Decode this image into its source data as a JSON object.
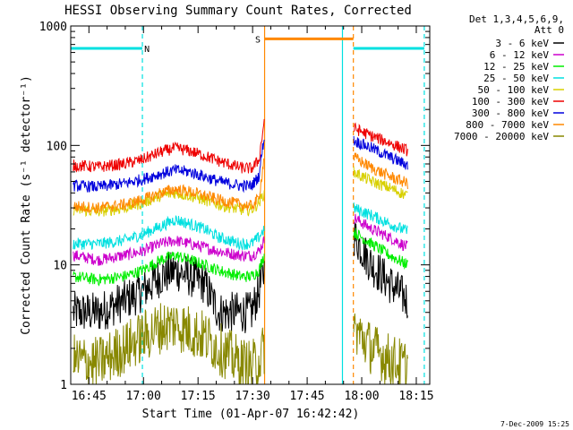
{
  "chart_data": {
    "type": "line",
    "title": "HESSI Observing Summary Count Rates, Corrected",
    "xlabel": "Start Time (01-Apr-07 16:42:42)",
    "ylabel": "Corrected Count Rate (s⁻¹ detector⁻¹)",
    "yscale": "log",
    "xlim_minutes": [
      -2.7,
      96.0
    ],
    "ylim": [
      1,
      1000
    ],
    "x_ticks": [
      {
        "m": 2.3,
        "label": "16:45"
      },
      {
        "m": 17.3,
        "label": "17:00"
      },
      {
        "m": 32.3,
        "label": "17:15"
      },
      {
        "m": 47.3,
        "label": "17:30"
      },
      {
        "m": 62.3,
        "label": "17:45"
      },
      {
        "m": 77.3,
        "label": "18:00"
      },
      {
        "m": 92.3,
        "label": "18:15"
      }
    ],
    "y_ticks": [
      {
        "v": 1,
        "label": "1"
      },
      {
        "v": 10,
        "label": "10"
      },
      {
        "v": 100,
        "label": "100"
      },
      {
        "v": 1000,
        "label": "1000"
      }
    ],
    "legend_header": [
      "Det 1,3,4,5,6,9,",
      "Att 0"
    ],
    "legend_position": "right",
    "data_gaps_minutes": [
      [
        50.6,
        75.0
      ]
    ],
    "series": [
      {
        "name": "3 - 6 keV",
        "color": "#000000",
        "points": [
          [
            -2,
            4
          ],
          [
            5,
            4
          ],
          [
            12,
            5
          ],
          [
            17,
            6
          ],
          [
            22,
            8
          ],
          [
            26,
            9
          ],
          [
            30,
            8
          ],
          [
            34,
            7
          ],
          [
            38,
            4
          ],
          [
            44,
            4
          ],
          [
            47,
            4
          ],
          [
            49,
            6
          ],
          [
            50.5,
            9
          ],
          [
            75,
            18
          ],
          [
            80,
            10
          ],
          [
            85,
            7
          ],
          [
            90,
            5
          ]
        ]
      },
      {
        "name": "6 - 12 keV",
        "color": "#cc00cc",
        "points": [
          [
            -2,
            12
          ],
          [
            5,
            11
          ],
          [
            12,
            12
          ],
          [
            17,
            13
          ],
          [
            22,
            15
          ],
          [
            26,
            16
          ],
          [
            30,
            15
          ],
          [
            34,
            14
          ],
          [
            38,
            13
          ],
          [
            44,
            12
          ],
          [
            47,
            12
          ],
          [
            49,
            13
          ],
          [
            50.5,
            16
          ],
          [
            75,
            25
          ],
          [
            80,
            20
          ],
          [
            85,
            17
          ],
          [
            90,
            14
          ]
        ]
      },
      {
        "name": "12 - 25 keV",
        "color": "#00ee00",
        "points": [
          [
            -2,
            8
          ],
          [
            5,
            7.5
          ],
          [
            12,
            8
          ],
          [
            17,
            9
          ],
          [
            22,
            11
          ],
          [
            26,
            12
          ],
          [
            30,
            11
          ],
          [
            34,
            10
          ],
          [
            38,
            9
          ],
          [
            44,
            8
          ],
          [
            47,
            8
          ],
          [
            49,
            9
          ],
          [
            50.5,
            12
          ],
          [
            75,
            19
          ],
          [
            80,
            15
          ],
          [
            85,
            12
          ],
          [
            90,
            10
          ]
        ]
      },
      {
        "name": "25 - 50 keV",
        "color": "#00e0e0",
        "points": [
          [
            -2,
            15
          ],
          [
            5,
            15
          ],
          [
            12,
            16
          ],
          [
            17,
            18
          ],
          [
            22,
            21
          ],
          [
            26,
            24
          ],
          [
            30,
            22
          ],
          [
            34,
            20
          ],
          [
            38,
            17
          ],
          [
            44,
            15
          ],
          [
            47,
            15
          ],
          [
            49,
            17
          ],
          [
            50.5,
            20
          ],
          [
            75,
            30
          ],
          [
            80,
            26
          ],
          [
            85,
            22
          ],
          [
            90,
            19
          ]
        ]
      },
      {
        "name": "50 - 100 keV",
        "color": "#d8d000",
        "points": [
          [
            -2,
            29
          ],
          [
            5,
            28
          ],
          [
            12,
            30
          ],
          [
            17,
            33
          ],
          [
            22,
            38
          ],
          [
            26,
            40
          ],
          [
            30,
            38
          ],
          [
            34,
            35
          ],
          [
            38,
            32
          ],
          [
            44,
            29
          ],
          [
            47,
            29
          ],
          [
            49,
            33
          ],
          [
            50.5,
            40
          ],
          [
            75,
            60
          ],
          [
            80,
            50
          ],
          [
            85,
            44
          ],
          [
            90,
            38
          ]
        ]
      },
      {
        "name": "100 - 300 keV",
        "color": "#ee0000",
        "points": [
          [
            -2,
            68
          ],
          [
            5,
            66
          ],
          [
            12,
            70
          ],
          [
            17,
            76
          ],
          [
            22,
            88
          ],
          [
            26,
            95
          ],
          [
            30,
            90
          ],
          [
            34,
            82
          ],
          [
            38,
            74
          ],
          [
            44,
            65
          ],
          [
            47,
            64
          ],
          [
            49,
            75
          ],
          [
            50.5,
            160
          ],
          [
            75,
            140
          ],
          [
            80,
            120
          ],
          [
            85,
            105
          ],
          [
            90,
            90
          ]
        ]
      },
      {
        "name": "300 - 800 keV",
        "color": "#0000dd",
        "points": [
          [
            -2,
            46
          ],
          [
            5,
            45
          ],
          [
            12,
            48
          ],
          [
            17,
            52
          ],
          [
            22,
            58
          ],
          [
            26,
            62
          ],
          [
            30,
            60
          ],
          [
            34,
            55
          ],
          [
            38,
            50
          ],
          [
            44,
            46
          ],
          [
            47,
            46
          ],
          [
            49,
            55
          ],
          [
            50.5,
            120
          ],
          [
            75,
            110
          ],
          [
            80,
            95
          ],
          [
            85,
            80
          ],
          [
            90,
            68
          ]
        ]
      },
      {
        "name": "800 - 7000 keV",
        "color": "#ff8800",
        "points": [
          [
            -2,
            31
          ],
          [
            5,
            30
          ],
          [
            12,
            32
          ],
          [
            17,
            35
          ],
          [
            22,
            40
          ],
          [
            26,
            43
          ],
          [
            30,
            41
          ],
          [
            34,
            38
          ],
          [
            38,
            35
          ],
          [
            44,
            32
          ],
          [
            47,
            31
          ],
          [
            49,
            36
          ],
          [
            50.5,
            80
          ],
          [
            75,
            80
          ],
          [
            80,
            65
          ],
          [
            85,
            55
          ],
          [
            90,
            48
          ]
        ]
      },
      {
        "name": "7000 - 20000 keV",
        "color": "#888800",
        "points": [
          [
            -2,
            1.6
          ],
          [
            5,
            1.5
          ],
          [
            12,
            2
          ],
          [
            17,
            2.5
          ],
          [
            22,
            3
          ],
          [
            26,
            3.2
          ],
          [
            30,
            2.8
          ],
          [
            34,
            2.5
          ],
          [
            38,
            2
          ],
          [
            44,
            1.5
          ],
          [
            47,
            1.4
          ],
          [
            49,
            1.6
          ],
          [
            50.5,
            2
          ],
          [
            75,
            3
          ],
          [
            80,
            2
          ],
          [
            85,
            1.6
          ],
          [
            90,
            1.4
          ]
        ]
      }
    ],
    "flag_markers": [
      {
        "label": "N",
        "color": "#00e0e0",
        "x1": -2.7,
        "x2": 17.0,
        "y": 650,
        "label_x": 17.5,
        "dashed_at": [
          17.0
        ]
      },
      {
        "label": "S",
        "color": "#ff8800",
        "x1": 50.5,
        "x2": 75.0,
        "y": 780,
        "label_x": 48.0,
        "dashed_at": [
          75.0
        ]
      },
      {
        "label": "",
        "color": "#00e0e0",
        "x1": 75.0,
        "x2": 94.5,
        "y": 650,
        "label_x": null,
        "dashed_at": [
          94.5
        ]
      }
    ],
    "vertical_lines": [
      {
        "x": 50.6,
        "color": "#ff8800",
        "style": "solid"
      },
      {
        "x": 72.0,
        "color": "#00e0e0",
        "style": "solid"
      },
      {
        "x": 75.0,
        "color": "#ff8800",
        "style": "dashed"
      },
      {
        "x": 17.0,
        "color": "#00e0e0",
        "style": "dashed"
      },
      {
        "x": 94.5,
        "color": "#00e0e0",
        "style": "dashed"
      }
    ]
  },
  "footer": {
    "date_stamp": "7-Dec-2009 15:25"
  }
}
